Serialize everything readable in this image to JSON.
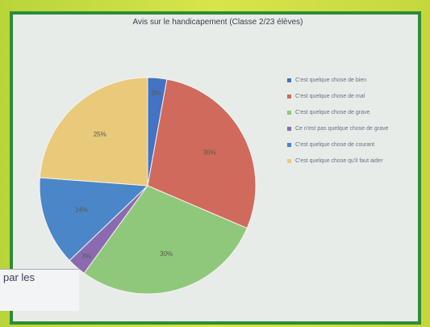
{
  "chart_data": {
    "type": "pie",
    "title": "Avis sur le handicapement (Classe 2/23 élèves)",
    "slices": [
      {
        "label": "C'est quelque chose de bien",
        "value": 3,
        "color": "#4472c4"
      },
      {
        "label": "C'est quelque chose de mal",
        "value": 30,
        "color": "#d06a5c"
      },
      {
        "label": "C'est quelque chose de grave",
        "value": 30,
        "color": "#8fc87a"
      },
      {
        "label": "Ce n'est pas quelque chose de grave",
        "value": 3,
        "color": "#8b6bb0"
      },
      {
        "label": "C'est quelque chose de courant",
        "value": 14,
        "color": "#4a86c8"
      },
      {
        "label": "C'est quelque chose qu'il faut aider",
        "value": 25,
        "color": "#e9c97a"
      }
    ],
    "data_labels": [
      "3%",
      "30%",
      "30%",
      "3%",
      "14%",
      "25%"
    ],
    "legend_position": "right"
  },
  "overlay": {
    "note_text": "par les"
  }
}
